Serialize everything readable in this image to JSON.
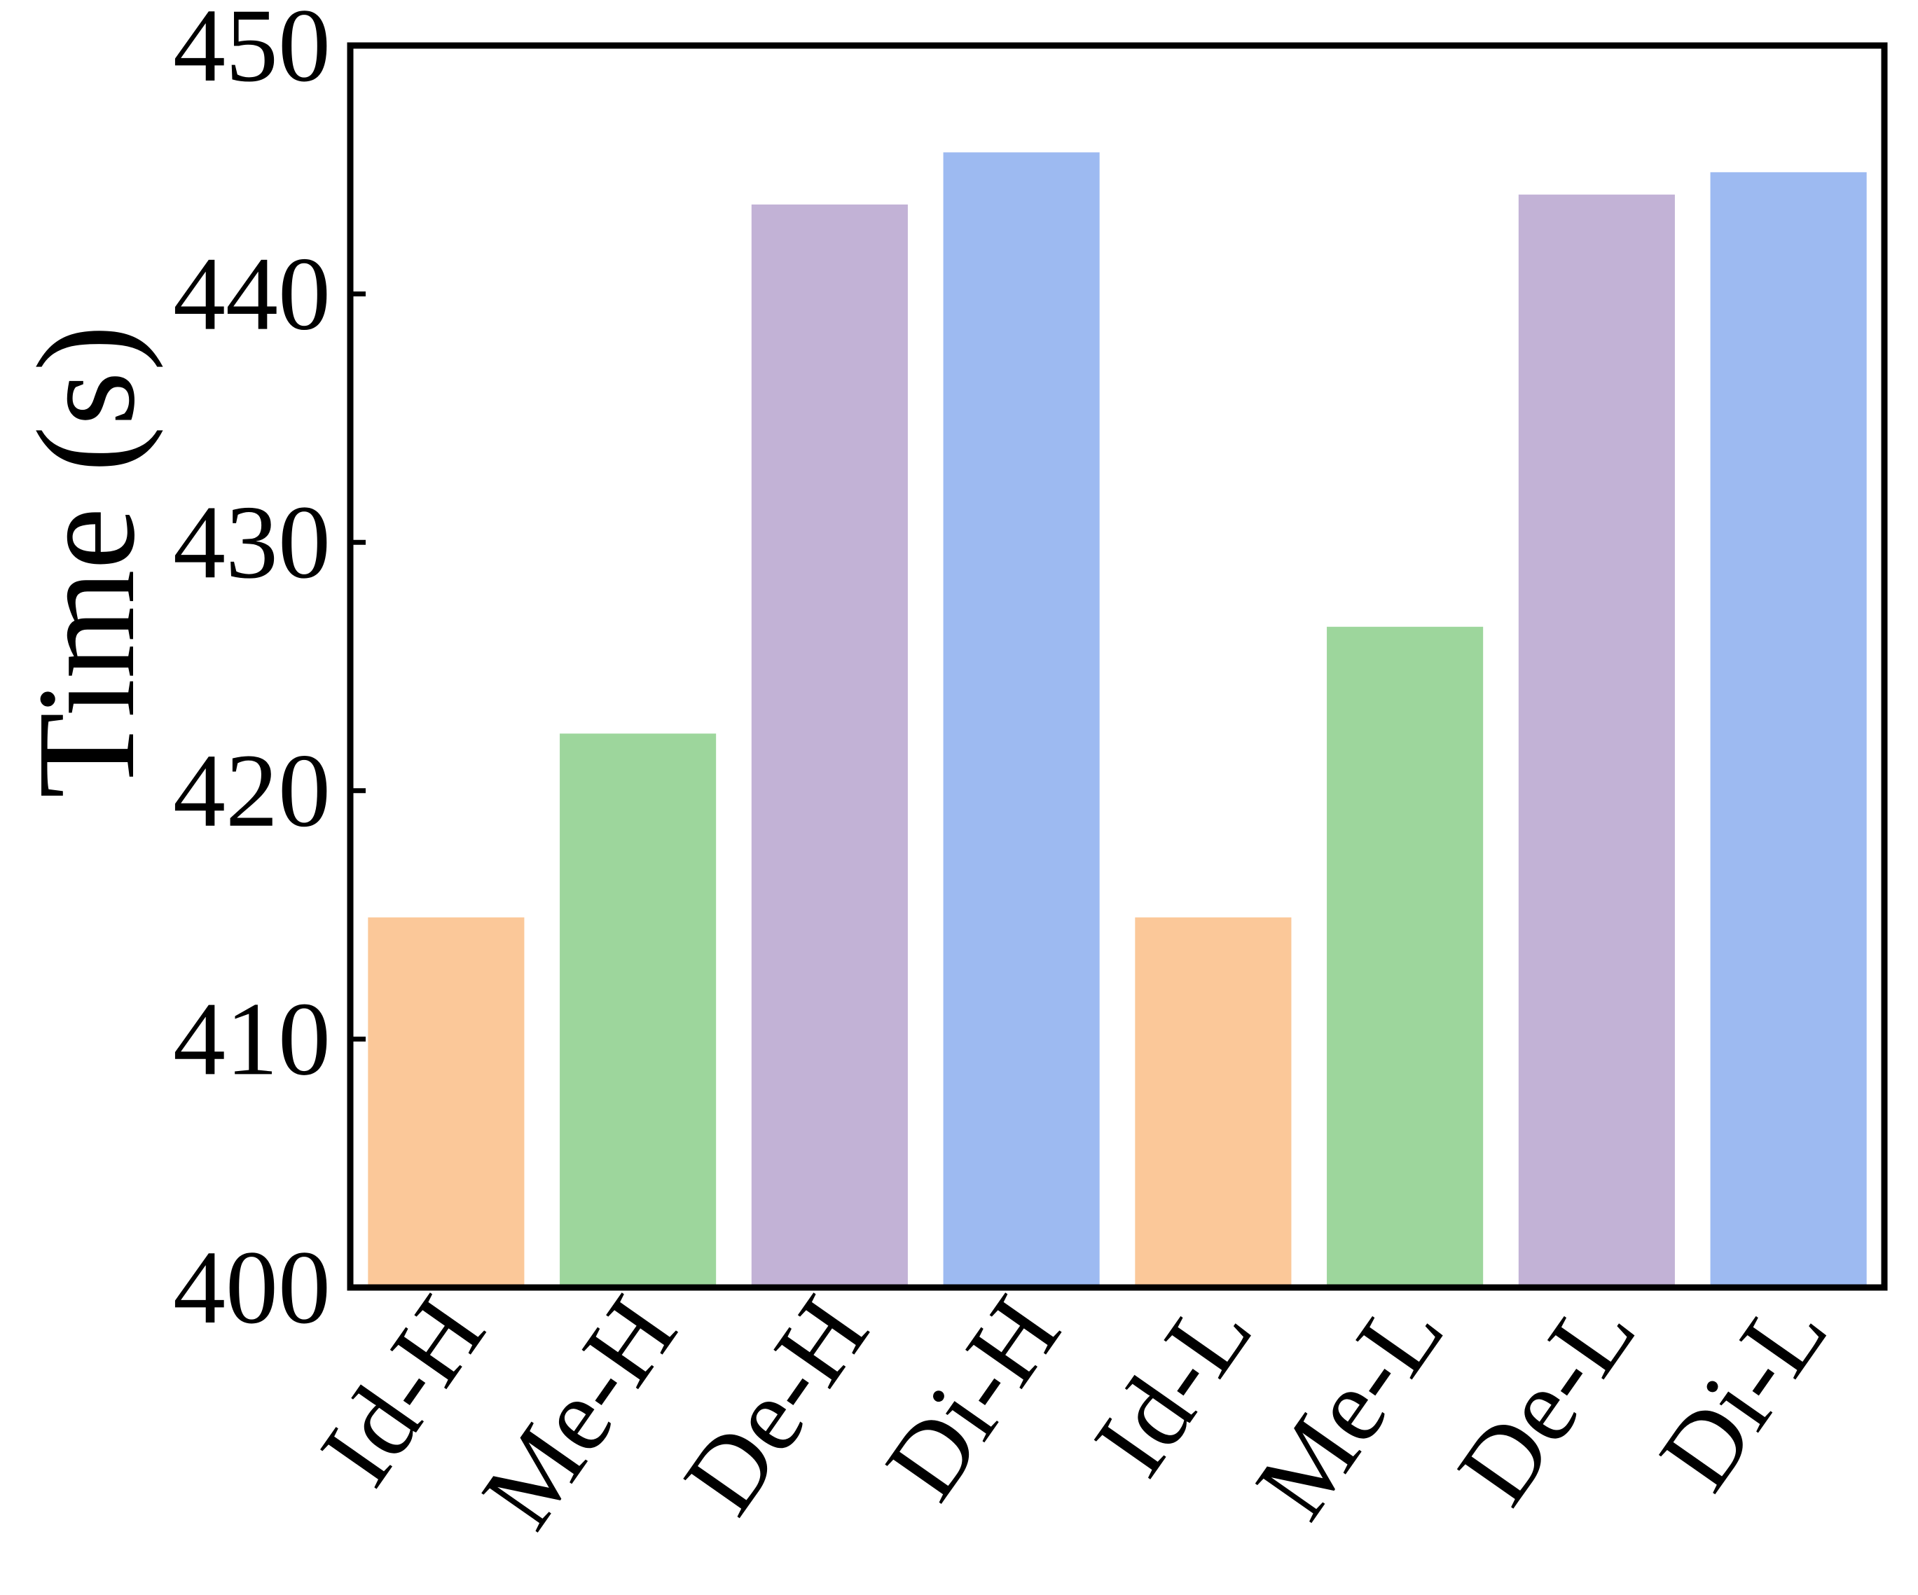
{
  "chart_data": {
    "type": "bar",
    "title": "",
    "xlabel": "",
    "ylabel": "Time (s)",
    "ylim": [
      400,
      450
    ],
    "yticks": [
      400,
      410,
      420,
      430,
      440,
      450
    ],
    "grid": false,
    "legend": "none",
    "categories": [
      "Id-H",
      "Me-H",
      "De-H",
      "Di-H",
      "Id-L",
      "Me-L",
      "De-L",
      "Di-L"
    ],
    "values": [
      414.9,
      422.3,
      443.6,
      445.7,
      414.9,
      426.6,
      444.0,
      444.9
    ],
    "colors": [
      "#fbc899",
      "#9dd69c",
      "#c2b2d6",
      "#9dbaf1",
      "#fbc899",
      "#9dd69c",
      "#c2b2d6",
      "#9dbaf1"
    ]
  }
}
